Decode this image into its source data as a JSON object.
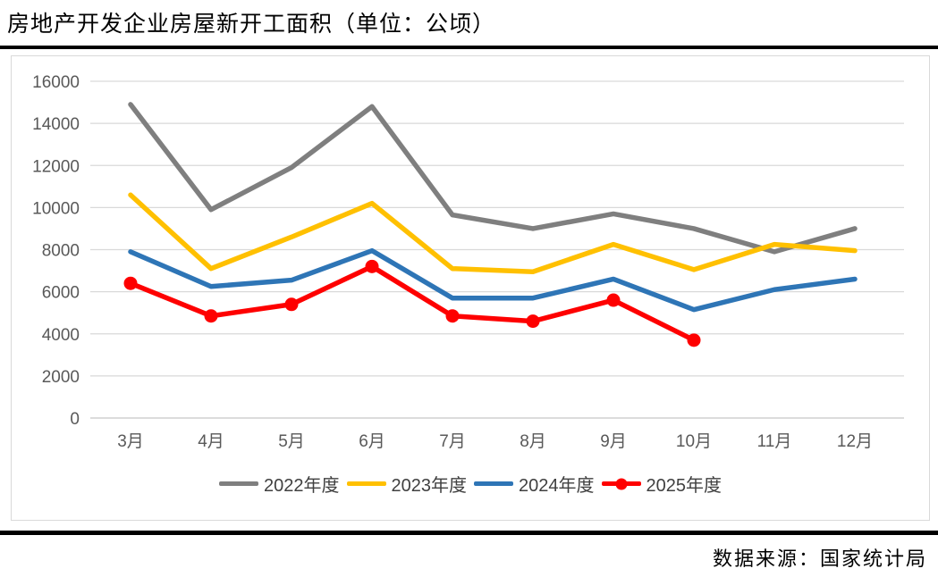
{
  "title": "房地产开发企业房屋新开工面积（单位：公顷）",
  "footer": {
    "source_label": "数据来源：国家统计局"
  },
  "colors": {
    "gridline": "#d9d9d9",
    "zero_axis": "#c6c6c6",
    "axis_text": "#595959",
    "legend_text": "#404040",
    "rule": "#000000"
  },
  "chart_data": {
    "type": "line",
    "title": "房地产开发企业房屋新开工面积（单位：公顷）",
    "categories": [
      "3月",
      "4月",
      "5月",
      "6月",
      "7月",
      "8月",
      "9月",
      "10月",
      "11月",
      "12月"
    ],
    "series": [
      {
        "name": "2022年度",
        "color": "#7F7F7F",
        "marker": false,
        "values": [
          14900,
          9900,
          11900,
          14800,
          9650,
          9000,
          9700,
          9000,
          7900,
          9000
        ]
      },
      {
        "name": "2023年度",
        "color": "#FFC000",
        "marker": false,
        "values": [
          10600,
          7100,
          8600,
          10200,
          7100,
          6950,
          8250,
          7050,
          8250,
          7950
        ]
      },
      {
        "name": "2024年度",
        "color": "#2E75B6",
        "marker": false,
        "values": [
          7900,
          6250,
          6550,
          7950,
          5700,
          5700,
          6600,
          5150,
          6100,
          6600
        ]
      },
      {
        "name": "2025年度",
        "color": "#FE0000",
        "marker": true,
        "values": [
          6400,
          4850,
          5400,
          7200,
          4850,
          4600,
          5600,
          3700,
          null,
          null
        ]
      }
    ],
    "ylim": [
      0,
      16000
    ],
    "ytick_step": 2000,
    "grid": true,
    "legend_position": "bottom"
  }
}
